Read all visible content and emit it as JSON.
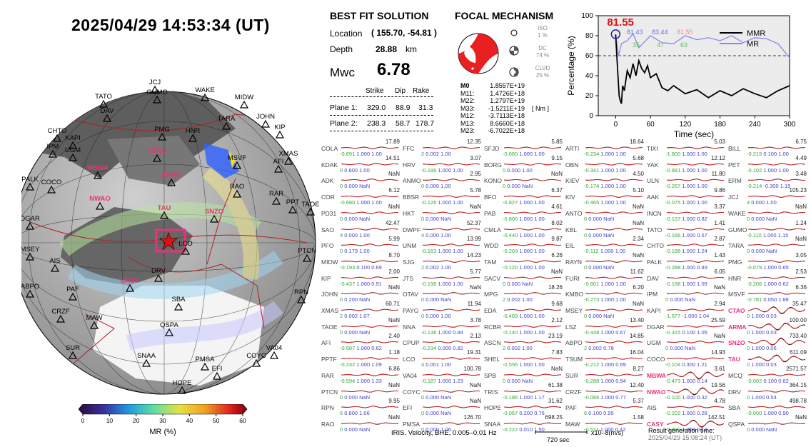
{
  "title": "2025/04/29  14:53:34 (UT)",
  "solution": {
    "heading": "BEST FIT SOLUTION",
    "location_label": "Location",
    "location_value": "( 155.70,  -54.81 )",
    "depth_label": "Depth",
    "depth_value": "28.88",
    "depth_unit": "km",
    "mag_label": "Mwc",
    "mag_value": "6.78",
    "columns": [
      "Strike",
      "Dip",
      "Rake"
    ],
    "plane1": {
      "label": "Plane 1:",
      "strike": "329.0",
      "dip": "88.9",
      "rake": "31.3"
    },
    "plane2": {
      "label": "Plane 2:",
      "strike": "238.3",
      "dip": "58.7",
      "rake": "178.7"
    }
  },
  "focal": {
    "heading": "FOCAL MECHANISM",
    "iso_label": "ISO",
    "iso_value": "1 %",
    "dc_label": "DC",
    "dc_value": "74 %",
    "clvd_label": "CLVD",
    "clvd_value": "25 %",
    "tensor_unit": "[ Nm ]",
    "tensor": [
      {
        "name": "M0",
        "value": "1.8557E+19"
      },
      {
        "name": "M11:",
        "value": "1.4726E+18"
      },
      {
        "name": "M22:",
        "value": "1.2797E+19"
      },
      {
        "name": "M33:",
        "value": "-1.5211E+19"
      },
      {
        "name": "M12:",
        "value": "-3.7113E+18"
      },
      {
        "name": "M13:",
        "value": "8.6660E+18"
      },
      {
        "name": "M23:",
        "value": "-6.7022E+18"
      }
    ],
    "colors": {
      "compression": "#e82020"
    }
  },
  "chart_data": {
    "type": "line",
    "xlabel": "Time (sec)",
    "ylabel": "Percentage (%)",
    "xlim": [
      -30,
      300
    ],
    "ylim": [
      0,
      100
    ],
    "xticks": [
      0,
      60,
      120,
      180,
      240,
      300
    ],
    "yticks": [
      0,
      20,
      40,
      60,
      80,
      100
    ],
    "threshold": 60,
    "peak_label": "81.55",
    "mr_labels": [
      "81.43",
      "83.44",
      "81.55"
    ],
    "vr_labels": [
      "35",
      "47",
      "63"
    ],
    "legend": [
      "MMR",
      "MR"
    ],
    "series": [
      {
        "name": "MMR",
        "color": "#000000",
        "x": [
          0,
          2,
          4,
          6,
          8,
          10,
          12,
          15,
          20,
          25,
          30,
          35,
          40,
          45,
          50,
          55,
          60,
          70,
          80,
          90,
          100,
          120,
          140,
          160,
          180,
          200,
          220,
          240,
          260,
          280,
          300
        ],
        "y": [
          81,
          60,
          40,
          20,
          15,
          12,
          30,
          25,
          45,
          38,
          52,
          40,
          55,
          47,
          43,
          50,
          38,
          42,
          28,
          25,
          30,
          22,
          26,
          18,
          25,
          20,
          27,
          22,
          18,
          25,
          30
        ]
      },
      {
        "name": "MR",
        "color": "#8888ee",
        "x": [
          0,
          5,
          10,
          20,
          30,
          40,
          50,
          60,
          80,
          100,
          120,
          140,
          160,
          180,
          200,
          220,
          240,
          260,
          280,
          300
        ],
        "y": [
          82,
          60,
          72,
          75,
          82,
          68,
          74,
          80,
          73,
          72,
          80,
          76,
          78,
          75,
          80,
          73,
          78,
          77,
          72,
          58
        ]
      }
    ]
  },
  "colorbar": {
    "label": "MR (%)",
    "ticks": [
      "0",
      "10",
      "20",
      "30",
      "40",
      "50",
      "60"
    ]
  },
  "stations_map": [
    {
      "name": "JCJ",
      "red": false
    },
    {
      "name": "GUMO",
      "red": false
    },
    {
      "name": "TATO",
      "red": false
    },
    {
      "name": "WAKE",
      "red": false
    },
    {
      "name": "MIDW",
      "red": false
    },
    {
      "name": "DAV",
      "red": false
    },
    {
      "name": "JOHN",
      "red": false
    },
    {
      "name": "TARA",
      "red": false
    },
    {
      "name": "CHTO",
      "red": false
    },
    {
      "name": "KIP",
      "red": false
    },
    {
      "name": "PMG",
      "red": false
    },
    {
      "name": "HNR",
      "red": false
    },
    {
      "name": "KAPI",
      "red": false
    },
    {
      "name": "IPM",
      "red": false
    },
    {
      "name": "UGM",
      "red": false
    },
    {
      "name": "CTAO",
      "red": true
    },
    {
      "name": "XMAS",
      "red": false
    },
    {
      "name": "MSVF",
      "red": false
    },
    {
      "name": "AFI",
      "red": false
    },
    {
      "name": "MBWA",
      "red": true
    },
    {
      "name": "ARMA",
      "red": true
    },
    {
      "name": "PALK",
      "red": false
    },
    {
      "name": "COCO",
      "red": false
    },
    {
      "name": "RAO",
      "red": false
    },
    {
      "name": "NWAO",
      "red": true
    },
    {
      "name": "RAR",
      "red": false
    },
    {
      "name": "PPT",
      "red": false
    },
    {
      "name": "TAOE",
      "red": false
    },
    {
      "name": "TAU",
      "red": true
    },
    {
      "name": "SNZO",
      "red": true
    },
    {
      "name": "DGAR",
      "red": false
    },
    {
      "name": "MSEY",
      "red": false
    },
    {
      "name": "PTCN",
      "red": false
    },
    {
      "name": "AIS",
      "red": false
    },
    {
      "name": "CASY",
      "red": true
    },
    {
      "name": "DRV",
      "red": false
    },
    {
      "name": "ABPO",
      "red": false
    },
    {
      "name": "PAF",
      "red": false
    },
    {
      "name": "RPN",
      "red": false
    },
    {
      "name": "CRZF",
      "red": false
    },
    {
      "name": "SBA",
      "red": false
    },
    {
      "name": "MAW",
      "red": false
    },
    {
      "name": "QSPA",
      "red": false
    },
    {
      "name": "SUR",
      "red": false
    },
    {
      "name": "SNAA",
      "red": false
    },
    {
      "name": "PMSA",
      "red": false
    },
    {
      "name": "COYC",
      "red": false
    },
    {
      "name": "VA04",
      "red": false
    },
    {
      "name": "EFI",
      "red": false
    },
    {
      "name": "HOPE",
      "red": false
    },
    {
      "name": "LCO",
      "red": false
    }
  ],
  "waveforms": [
    {
      "st": "COLA",
      "amp": "17.89",
      "v": "-0.891",
      "c": "1.000",
      "s": "1.00"
    },
    {
      "st": "KDAK",
      "amp": "14.51",
      "v": "0",
      "c": "0.800",
      "s": "1.00"
    },
    {
      "st": "ADK",
      "amp": "NaN",
      "v": "0",
      "c": "0.000",
      "s": "NaN"
    },
    {
      "st": "COR",
      "amp": "6.12",
      "v": "-0.680",
      "c": "1.000",
      "s": "1.00"
    },
    {
      "st": "PD31",
      "amp": "NaN",
      "v": "0",
      "c": "0.000",
      "s": "NaN"
    },
    {
      "st": "SAO",
      "amp": "42.47",
      "v": "4",
      "c": "0.000",
      "s": "1.00"
    },
    {
      "st": "PFO",
      "amp": "5.99",
      "v": "0",
      "c": "0.179",
      "s": "1.00"
    },
    {
      "st": "MIDW",
      "amp": "8.70",
      "v": "-0.193",
      "c": "0.100",
      "s": "0.69"
    },
    {
      "st": "KIP",
      "amp": "2.00",
      "v": "-0.437",
      "c": "1.000",
      "s": "0.91"
    },
    {
      "st": "JOHN",
      "amp": "NaN",
      "v": "0",
      "c": "0.200",
      "s": "NaN"
    },
    {
      "st": "XMAS",
      "amp": "60.71",
      "v": "2",
      "c": "0.002",
      "s": "1.07"
    },
    {
      "st": "TAOE",
      "amp": "NaN",
      "v": "0",
      "c": "0.000",
      "s": "NaN"
    },
    {
      "st": "AFI",
      "amp": "2.40",
      "v": "-0.587",
      "c": "1.000",
      "s": "0.62"
    },
    {
      "st": "PPTF",
      "amp": "1.18",
      "v": "-0.232",
      "c": "1.000",
      "s": "1.09"
    },
    {
      "st": "RAR",
      "amp": "6.86",
      "v": "-0.594",
      "c": "1.000",
      "s": "1.33"
    },
    {
      "st": "PTCN",
      "amp": "NaN",
      "v": "0",
      "c": "0.000",
      "s": "NaN"
    },
    {
      "st": "RPN",
      "amp": "9.95",
      "v": "6",
      "c": "0.800",
      "s": "1.06"
    },
    {
      "st": "RAO",
      "amp": "NaN",
      "v": "0",
      "c": "0.000",
      "s": "NaN"
    },
    {
      "st": "FFC",
      "amp": "12.35",
      "v": "2",
      "c": "0.002",
      "s": "1.00"
    },
    {
      "st": "HRV",
      "amp": "3.07",
      "v": "-0.199",
      "c": "1.000",
      "s": "1.00"
    },
    {
      "st": "ANMO",
      "amp": "2.95",
      "v": "0",
      "c": "0.000",
      "s": "1.00"
    },
    {
      "st": "BBSR",
      "amp": "5.78",
      "v": "-0.126",
      "c": "1.000",
      "s": "1.00"
    },
    {
      "st": "HKT",
      "amp": "NaN",
      "v": "0",
      "c": "0.000",
      "s": "NaN"
    },
    {
      "st": "DWPF",
      "amp": "52.37",
      "v": "4",
      "c": "0.000",
      "s": "1.00"
    },
    {
      "st": "UNM",
      "amp": "13.99",
      "v": "-0.163",
      "c": "1.000",
      "s": "1.00"
    },
    {
      "st": "SJG",
      "amp": "14.23",
      "v": "2",
      "c": "0.002",
      "s": "1.00"
    },
    {
      "st": "JTS",
      "amp": "5.77",
      "v": "-0.196",
      "c": "1.000",
      "s": "1.00"
    },
    {
      "st": "OTAV",
      "amp": "NaN",
      "v": "0",
      "c": "0.000",
      "s": "NaN"
    },
    {
      "st": "PAYG",
      "amp": "11.94",
      "v": "0",
      "c": "0.000",
      "s": "1.00"
    },
    {
      "st": "NNA",
      "amp": "3.78",
      "v": "-0.136",
      "c": "1.000",
      "s": "0.94"
    },
    {
      "st": "CPUP",
      "amp": "2.13",
      "v": "-0.234",
      "c": "0.000",
      "s": "0.92"
    },
    {
      "st": "LCO",
      "amp": "19.31",
      "v": "4",
      "c": "0.001",
      "s": "1.00"
    },
    {
      "st": "VA04",
      "amp": "100.78",
      "v": "-0.187",
      "c": "1.000",
      "s": "1.23"
    },
    {
      "st": "COYC",
      "amp": "NaN",
      "v": "0",
      "c": "0.000",
      "s": "NaN"
    },
    {
      "st": "EFI",
      "amp": "NaN",
      "v": "0",
      "c": "0.000",
      "s": "NaN"
    },
    {
      "st": "PMSA",
      "amp": "126.70",
      "v": "0",
      "c": "0.000",
      "s": "1.06"
    },
    {
      "st": "SFJD",
      "amp": "5.85",
      "v": "-0.680",
      "c": "1.000",
      "s": "1.00"
    },
    {
      "st": "BORG",
      "amp": "9.15",
      "v": "0",
      "c": "0.000",
      "s": "1.00"
    },
    {
      "st": "KONO",
      "amp": "NaN",
      "v": "0",
      "c": "0.000",
      "s": "NaN"
    },
    {
      "st": "BFO",
      "amp": "6.37",
      "v": "-0.827",
      "c": "1.000",
      "s": "1.00"
    },
    {
      "st": "PAB",
      "amp": "4.61",
      "v": "-0.800",
      "c": "1.000",
      "s": "1.00"
    },
    {
      "st": "CMLA",
      "amp": "8.02",
      "v": "-0.440",
      "c": "1.000",
      "s": "1.00"
    },
    {
      "st": "WDD",
      "amp": "9.87",
      "v": "-0.203",
      "c": "1.000",
      "s": "1.00"
    },
    {
      "st": "TAM",
      "amp": "6.26",
      "v": "-0.120",
      "c": "1.000",
      "s": "1.00"
    },
    {
      "st": "SACV",
      "amp": "NaN",
      "v": "0",
      "c": "0.000",
      "s": "NaN"
    },
    {
      "st": "MPG",
      "amp": "18.26",
      "v": "2",
      "c": "0.002",
      "s": "1.00"
    },
    {
      "st": "EDA",
      "amp": "9.68",
      "v": "-0.469",
      "c": "1.000",
      "s": "1.00"
    },
    {
      "st": "RCBR",
      "amp": "2.12",
      "v": "-0.140",
      "c": "1.000",
      "s": "1.00"
    },
    {
      "st": "ASCN",
      "amp": "23.19",
      "v": "2",
      "c": "0.002",
      "s": "1.00"
    },
    {
      "st": "SHEL",
      "amp": "7.83",
      "v": "-0.556",
      "c": "1.000",
      "s": "1.00"
    },
    {
      "st": "SPB",
      "amp": "NaN",
      "v": "0",
      "c": "0.000",
      "s": "NaN"
    },
    {
      "st": "TRIS",
      "amp": "61.38",
      "v": "-0.186",
      "c": "1.000",
      "s": "1.17"
    },
    {
      "st": "HOPE",
      "amp": "31.62",
      "v": "-0.067",
      "c": "0.200",
      "s": "0.76"
    },
    {
      "st": "SNAA",
      "amp": "698.25",
      "v": "-0.222",
      "c": "0.010",
      "s": "1.50"
    },
    {
      "st": "ARTI",
      "amp": "18.64",
      "v": "-0.234",
      "c": "1.000",
      "s": "1.00"
    },
    {
      "st": "OBN",
      "amp": "5.68",
      "v": "-0.341",
      "c": "1.000",
      "s": "1.00"
    },
    {
      "st": "KIEV",
      "amp": "4.50",
      "v": "-0.174",
      "c": "1.000",
      "s": "1.00"
    },
    {
      "st": "KIV",
      "amp": "5.10",
      "v": "-0.465",
      "c": "1.000",
      "s": "1.00"
    },
    {
      "st": "ANTO",
      "amp": "NaN",
      "v": "0",
      "c": "0.000",
      "s": "NaN"
    },
    {
      "st": "KBL",
      "amp": "NaN",
      "v": "0",
      "c": "0.000",
      "s": "NaN"
    },
    {
      "st": "EIL",
      "amp": "2.34",
      "v": "-0.112",
      "c": "1.000",
      "s": "1.00"
    },
    {
      "st": "RAYN",
      "amp": "NaN",
      "v": "0",
      "c": "0.000",
      "s": "NaN"
    },
    {
      "st": "FURI",
      "amp": "11.62",
      "v": "-0.601",
      "c": "1.000",
      "s": "1.00"
    },
    {
      "st": "KMBO",
      "amp": "6.20",
      "v": "-0.273",
      "c": "1.000",
      "s": "1.00"
    },
    {
      "st": "MSEY",
      "amp": "NaN",
      "v": "0",
      "c": "0.000",
      "s": "NaN"
    },
    {
      "st": "LSZ",
      "amp": "13.40",
      "v": "-0.448",
      "c": "1.000",
      "s": "0.67"
    },
    {
      "st": "ABPO",
      "amp": "14.85",
      "v": "2",
      "c": "0.002",
      "s": "0.78"
    },
    {
      "st": "TSUM",
      "amp": "16.04",
      "v": "-0.212",
      "c": "1.000",
      "s": "0.69"
    },
    {
      "st": "SUR",
      "amp": "8.27",
      "v": "-0.288",
      "c": "1.000",
      "s": "0.94"
    },
    {
      "st": "CRZF",
      "amp": "12.40",
      "v": "-0.086",
      "c": "1.000",
      "s": "0.77"
    },
    {
      "st": "PAF",
      "amp": "5.37",
      "v": "6",
      "c": "0.100",
      "s": "0.95"
    },
    {
      "st": "MAW",
      "amp": "1.58",
      "v": "-0.511",
      "c": "1.000",
      "s": "0.42"
    },
    {
      "st": "TIXI",
      "amp": "5.03",
      "v": "-1.800",
      "c": "1.000",
      "s": "1.00"
    },
    {
      "st": "YAK",
      "amp": "12.12",
      "v": "-0.881",
      "c": "1.000",
      "s": "1.00"
    },
    {
      "st": "ULN",
      "amp": "11.80",
      "v": "-0.267",
      "c": "1.000",
      "s": "1.00"
    },
    {
      "st": "AAK",
      "amp": "9.86",
      "v": "-0.075",
      "c": "1.000",
      "s": "1.00"
    },
    {
      "st": "INCN",
      "amp": "3.37",
      "v": "-0.137",
      "c": "1.000",
      "s": "0.82"
    },
    {
      "st": "TATO",
      "amp": "1.41",
      "v": "-0.166",
      "c": "1.000",
      "s": "0.57"
    },
    {
      "st": "CHTO",
      "amp": "2.87",
      "v": "-0.188",
      "c": "1.000",
      "s": "1.24"
    },
    {
      "st": "PALK",
      "amp": "1.43",
      "v": "-0.288",
      "c": "1.000",
      "s": "0.93"
    },
    {
      "st": "DAV",
      "amp": "6.05",
      "v": "-0.188",
      "c": "1.000",
      "s": "1.09"
    },
    {
      "st": "IPM",
      "amp": "NaN",
      "v": "0",
      "c": "0.000",
      "s": "NaN"
    },
    {
      "st": "KAPI",
      "amp": "2.94",
      "v": "-1.577",
      "c": "-1.000",
      "s": "1.04"
    },
    {
      "st": "DGAR",
      "amp": "25.59",
      "v": "-0.315",
      "c": "0.100",
      "s": "1.05"
    },
    {
      "st": "UGM",
      "amp": "NaN",
      "v": "0",
      "c": "0.000",
      "s": "NaN"
    },
    {
      "st": "COCO",
      "amp": "14.93",
      "v": "-0.104",
      "c": "0.300",
      "s": "1.21"
    },
    {
      "st": "MBWA",
      "amp": "3.61",
      "v": "-0.473",
      "c": "1.000",
      "s": "0.14",
      "red": true
    },
    {
      "st": "NWAO",
      "amp": "19.56",
      "v": "-0.100",
      "c": "1.000",
      "s": "0.32",
      "red": true
    },
    {
      "st": "AIS",
      "amp": "4.78",
      "v": "-0.202",
      "c": "1.000",
      "s": "0.28"
    },
    {
      "st": "CASY",
      "amp": "142.51",
      "v": "-0.000",
      "c": "1.000",
      "s": "0.12",
      "red": true
    },
    {
      "st": "BILL",
      "amp": "6.75",
      "v": "-0.215",
      "c": "0.100",
      "s": "1.00"
    },
    {
      "st": "PET",
      "amp": "4.49",
      "v": "-0.102",
      "c": "1.000",
      "s": "1.00"
    },
    {
      "st": "ERM",
      "amp": "3.48",
      "v": "-0.214",
      "c": "-0.300",
      "s": "1.15"
    },
    {
      "st": "JCJ",
      "amp": "105.23",
      "v": "4",
      "c": "0.000",
      "s": "1.00"
    },
    {
      "st": "WAKE",
      "amp": "NaN",
      "v": "0",
      "c": "0.000",
      "s": "NaN"
    },
    {
      "st": "GUMO",
      "amp": "1.24",
      "v": "-0.110",
      "c": "1.000",
      "s": "1.15"
    },
    {
      "st": "TARA",
      "amp": "NaN",
      "v": "0",
      "c": "0.000",
      "s": "NaN"
    },
    {
      "st": "PMG",
      "amp": "3.05",
      "v": "-0.079",
      "c": "1.000",
      "s": "0.65"
    },
    {
      "st": "HNR",
      "amp": "2.53",
      "v": "-0.206",
      "c": "1.000",
      "s": "0.62"
    },
    {
      "st": "MSVF",
      "amp": "6.36",
      "v": "-0.781",
      "c": "0.050",
      "s": "1.88"
    },
    {
      "st": "CTAO",
      "amp": "35.47",
      "v": "0",
      "c": "1.000",
      "s": "0.03",
      "red": true
    },
    {
      "st": "ARMA",
      "amp": "100.00",
      "v": "0",
      "c": "1.000",
      "s": "0.03",
      "red": true
    },
    {
      "st": "SNZO",
      "amp": "733.40",
      "v": "0",
      "c": "1.000",
      "s": "0.06",
      "red": true
    },
    {
      "st": "TAU",
      "amp": "611.09",
      "v": "0",
      "c": "1.000",
      "s": "0.03",
      "red": true
    },
    {
      "st": "MCQ",
      "amp": "2571.57",
      "v": "-0.002",
      "c": "0.100",
      "s": "0.62"
    },
    {
      "st": "DRV",
      "amp": "364.15",
      "v": "0",
      "c": "1.000",
      "s": "0.54"
    },
    {
      "st": "SBA",
      "amp": "498.78",
      "v": "-0.000",
      "c": "1.000",
      "s": "0.90"
    },
    {
      "st": "QSPA",
      "amp": "NaN",
      "v": "0",
      "c": "0.000",
      "s": "NaN"
    }
  ],
  "footer": {
    "info": "IRIS, Velocity,   BHE,  0.005–0.01 Hz",
    "scale": "720 sec",
    "unit": "x10–8(m/s)",
    "gen_label": "Result generation time:",
    "gen_time": "2025/04/29 15:08:24 (UT)"
  }
}
